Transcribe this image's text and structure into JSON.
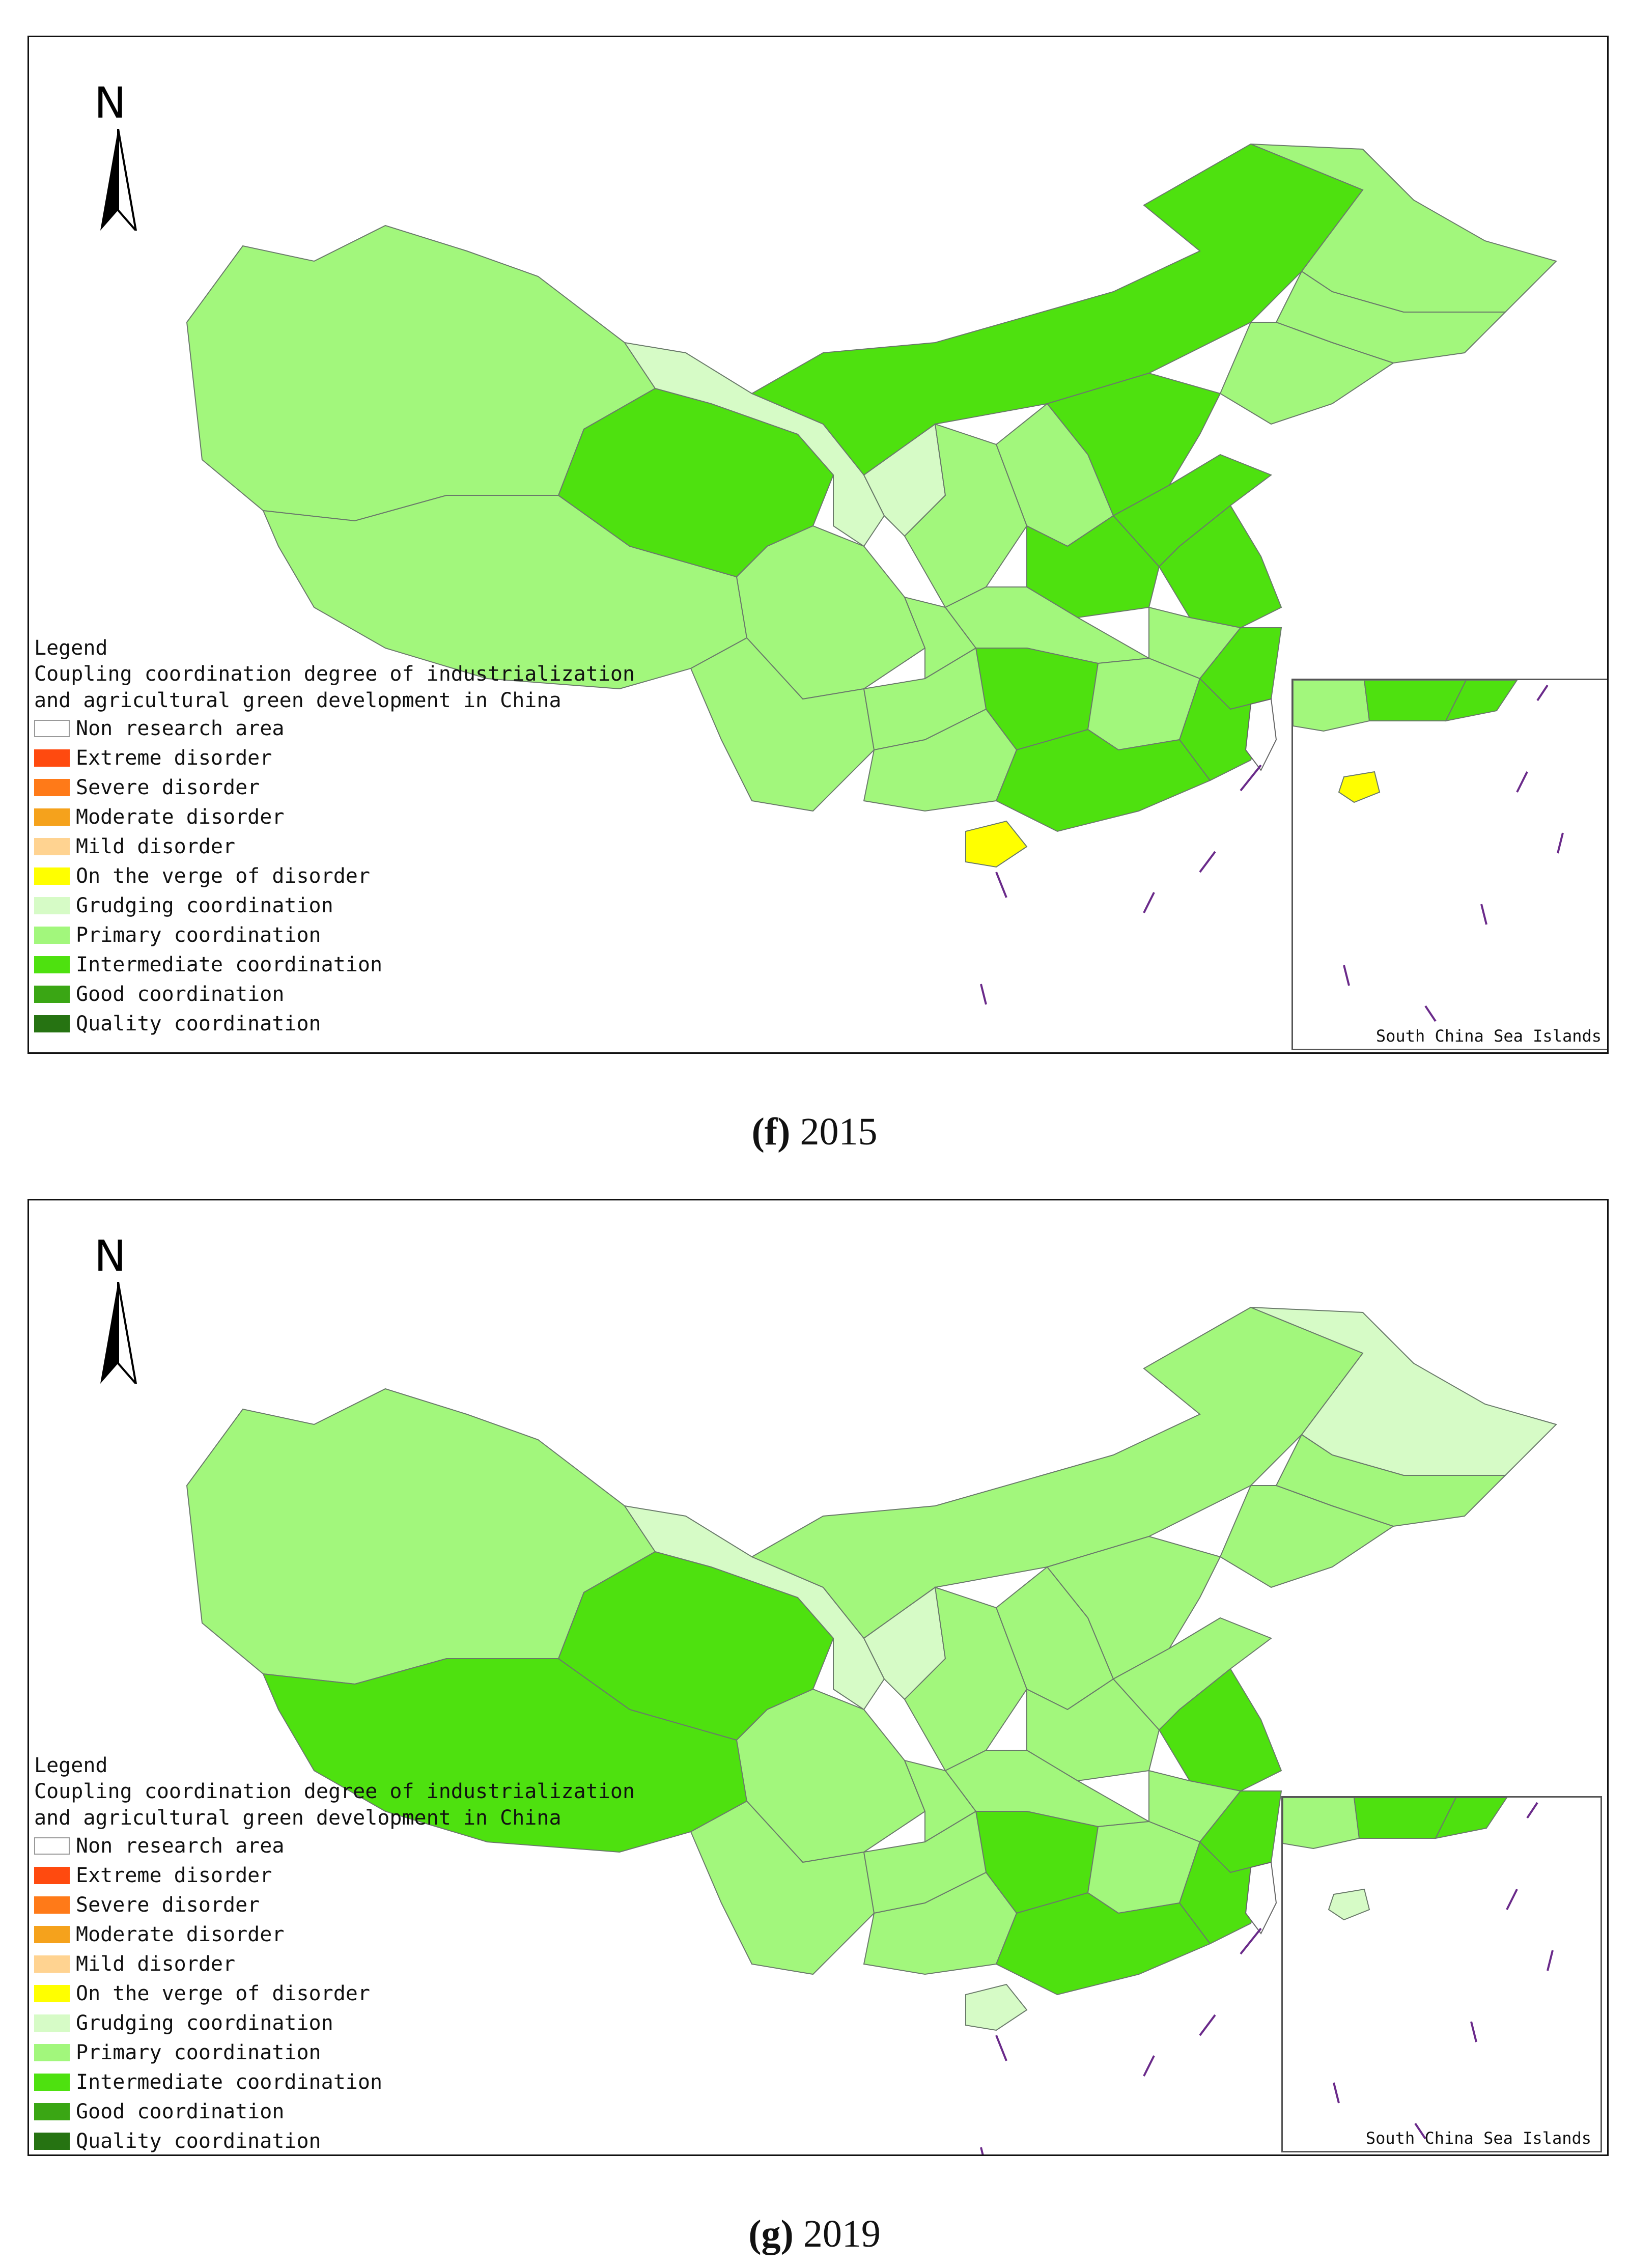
{
  "legend": {
    "title": "Legend",
    "subtitle_line1": "Coupling coordination degree of industrialization",
    "subtitle_line2": "and agricultural green development in China",
    "items": [
      {
        "label": "Non research area",
        "color": "#ffffff"
      },
      {
        "label": "Extreme disorder",
        "color": "#ff4a0f"
      },
      {
        "label": "Severe disorder",
        "color": "#ff7a18"
      },
      {
        "label": "Moderate disorder",
        "color": "#f5a21c"
      },
      {
        "label": "Mild disorder",
        "color": "#ffd391"
      },
      {
        "label": "On the verge of disorder",
        "color": "#ffff00"
      },
      {
        "label": "Grudging coordination",
        "color": "#d6fbc6"
      },
      {
        "label": "Primary coordination",
        "color": "#a2f77c"
      },
      {
        "label": "Intermediate coordination",
        "color": "#4ee10f"
      },
      {
        "label": "Good coordination",
        "color": "#3aa614"
      },
      {
        "label": "Quality coordination",
        "color": "#267312"
      }
    ]
  },
  "north_label": "N",
  "inset_label": "South China Sea Islands",
  "maps": [
    {
      "caption_letter": "(f)",
      "caption_year": "2015",
      "regions": {
        "xinjiang": "Primary coordination",
        "tibet": "Primary coordination",
        "qinghai": "Intermediate coordination",
        "gansu": "Grudging coordination",
        "inner_mongolia": "Intermediate coordination",
        "heilongjiang": "Primary coordination",
        "jilin": "Primary coordination",
        "liaoning": "Primary coordination",
        "beijing": "Good coordination",
        "hebei": "Intermediate coordination",
        "shanxi": "Primary coordination",
        "ningxia": "Grudging coordination",
        "shaanxi": "Primary coordination",
        "henan": "Intermediate coordination",
        "shandong": "Intermediate coordination",
        "jiangsu": "Intermediate coordination",
        "anhui": "Primary coordination",
        "zhejiang": "Intermediate coordination",
        "sichuan": "Primary coordination",
        "chongqing": "Primary coordination",
        "hubei": "Primary coordination",
        "hunan": "Intermediate coordination",
        "jiangxi": "Primary coordination",
        "fujian": "Intermediate coordination",
        "yunnan": "Primary coordination",
        "guizhou": "Primary coordination",
        "guangxi": "Primary coordination",
        "guangdong": "Intermediate coordination",
        "hainan": "On the verge of disorder"
      }
    },
    {
      "caption_letter": "(g)",
      "caption_year": "2019",
      "regions": {
        "xinjiang": "Primary coordination",
        "tibet": "Intermediate coordination",
        "qinghai": "Intermediate coordination",
        "gansu": "Grudging coordination",
        "inner_mongolia": "Primary coordination",
        "heilongjiang": "Grudging coordination",
        "jilin": "Primary coordination",
        "liaoning": "Primary coordination",
        "beijing": "Good coordination",
        "hebei": "Primary coordination",
        "shanxi": "Primary coordination",
        "ningxia": "Grudging coordination",
        "shaanxi": "Primary coordination",
        "henan": "Primary coordination",
        "shandong": "Primary coordination",
        "jiangsu": "Intermediate coordination",
        "anhui": "Primary coordination",
        "zhejiang": "Intermediate coordination",
        "sichuan": "Primary coordination",
        "chongqing": "Primary coordination",
        "hubei": "Primary coordination",
        "hunan": "Intermediate coordination",
        "jiangxi": "Primary coordination",
        "fujian": "Intermediate coordination",
        "yunnan": "Primary coordination",
        "guizhou": "Primary coordination",
        "guangxi": "Primary coordination",
        "guangdong": "Intermediate coordination",
        "hainan": "Grudging coordination"
      }
    }
  ]
}
